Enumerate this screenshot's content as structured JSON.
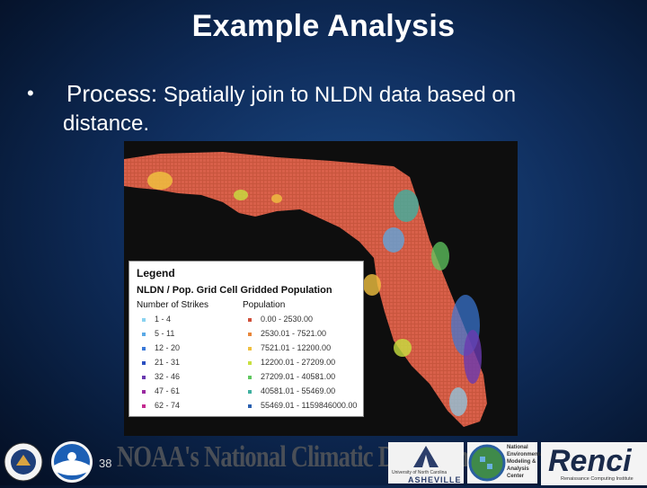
{
  "slide": {
    "title": "Example Analysis",
    "bullet_lead": "Process:",
    "bullet_rest": " Spatially join to NLDN data based on",
    "bullet_line2": "distance.",
    "page_number": "38"
  },
  "legend": {
    "title": "Legend",
    "header": "NLDN / Pop. Grid Cell Gridded Population",
    "col1_label": "Number of Strikes",
    "col2_label": "Population",
    "strikes": [
      {
        "label": "1 - 4",
        "color": "#8ad3f0"
      },
      {
        "label": "5 - 11",
        "color": "#5aa9e6"
      },
      {
        "label": "12 - 20",
        "color": "#3a79d8"
      },
      {
        "label": "21 - 31",
        "color": "#2a4fc0"
      },
      {
        "label": "32 - 46",
        "color": "#6a3ab0"
      },
      {
        "label": "47 - 61",
        "color": "#9a2aa0"
      },
      {
        "label": "62 - 74",
        "color": "#c42a90"
      }
    ],
    "population": [
      {
        "label": "0.00 - 2530.00",
        "color": "#d0503a"
      },
      {
        "label": "2530.01 - 7521.00",
        "color": "#e8863a"
      },
      {
        "label": "7521.01 - 12200.00",
        "color": "#f0c040"
      },
      {
        "label": "12200.01 - 27209.00",
        "color": "#c8e040"
      },
      {
        "label": "27209.01 - 40581.00",
        "color": "#60c860"
      },
      {
        "label": "40581.01 - 55469.00",
        "color": "#40b0a0"
      },
      {
        "label": "55469.01 - 1159846000.00",
        "color": "#2a60b0"
      }
    ]
  },
  "footer": {
    "ncdc_text": "NOAA's National Climatic Data Center",
    "unc_text": "University of North Carolina",
    "unc_campus": "ASHEVILLE",
    "nemac_letters": [
      "National",
      "Environmental",
      "Modeling &",
      "Analysis",
      "Center"
    ],
    "renci_word": "Renci",
    "renci_tagline": "Renaissance Computing Institute"
  },
  "colors": {
    "background": "#0f2d5c",
    "land": "#c8553d",
    "title_text": "#ffffff"
  }
}
